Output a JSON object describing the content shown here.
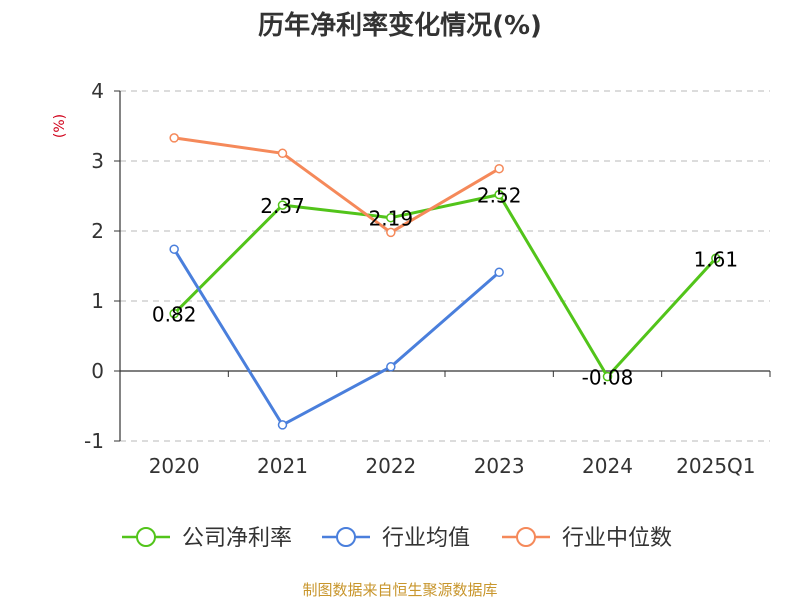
{
  "chart_data": {
    "type": "line",
    "title": "历年净利率变化情况(%)",
    "ylabel": "(%)",
    "categories": [
      "2020",
      "2021",
      "2022",
      "2023",
      "2024",
      "2025Q1"
    ],
    "y_ticks": [
      "-1",
      "0",
      "1",
      "2",
      "3",
      "4"
    ],
    "ylim": [
      -1,
      4
    ],
    "grid": true,
    "legend_position": "bottom",
    "series": [
      {
        "name": "公司净利率",
        "color": "#52c41a",
        "values": [
          0.82,
          2.37,
          2.19,
          2.52,
          -0.08,
          1.61
        ],
        "labels": [
          "0.82",
          "2.37",
          "2.19",
          "2.52",
          "-0.08",
          "1.61"
        ]
      },
      {
        "name": "行业均值",
        "color": "#4a7fdc",
        "values": [
          1.74,
          -0.77,
          0.06,
          1.41,
          null,
          null
        ]
      },
      {
        "name": "行业中位数",
        "color": "#f5895a",
        "values": [
          3.33,
          3.11,
          1.98,
          2.89,
          null,
          null
        ]
      }
    ]
  },
  "source": "制图数据来自恒生聚源数据库"
}
